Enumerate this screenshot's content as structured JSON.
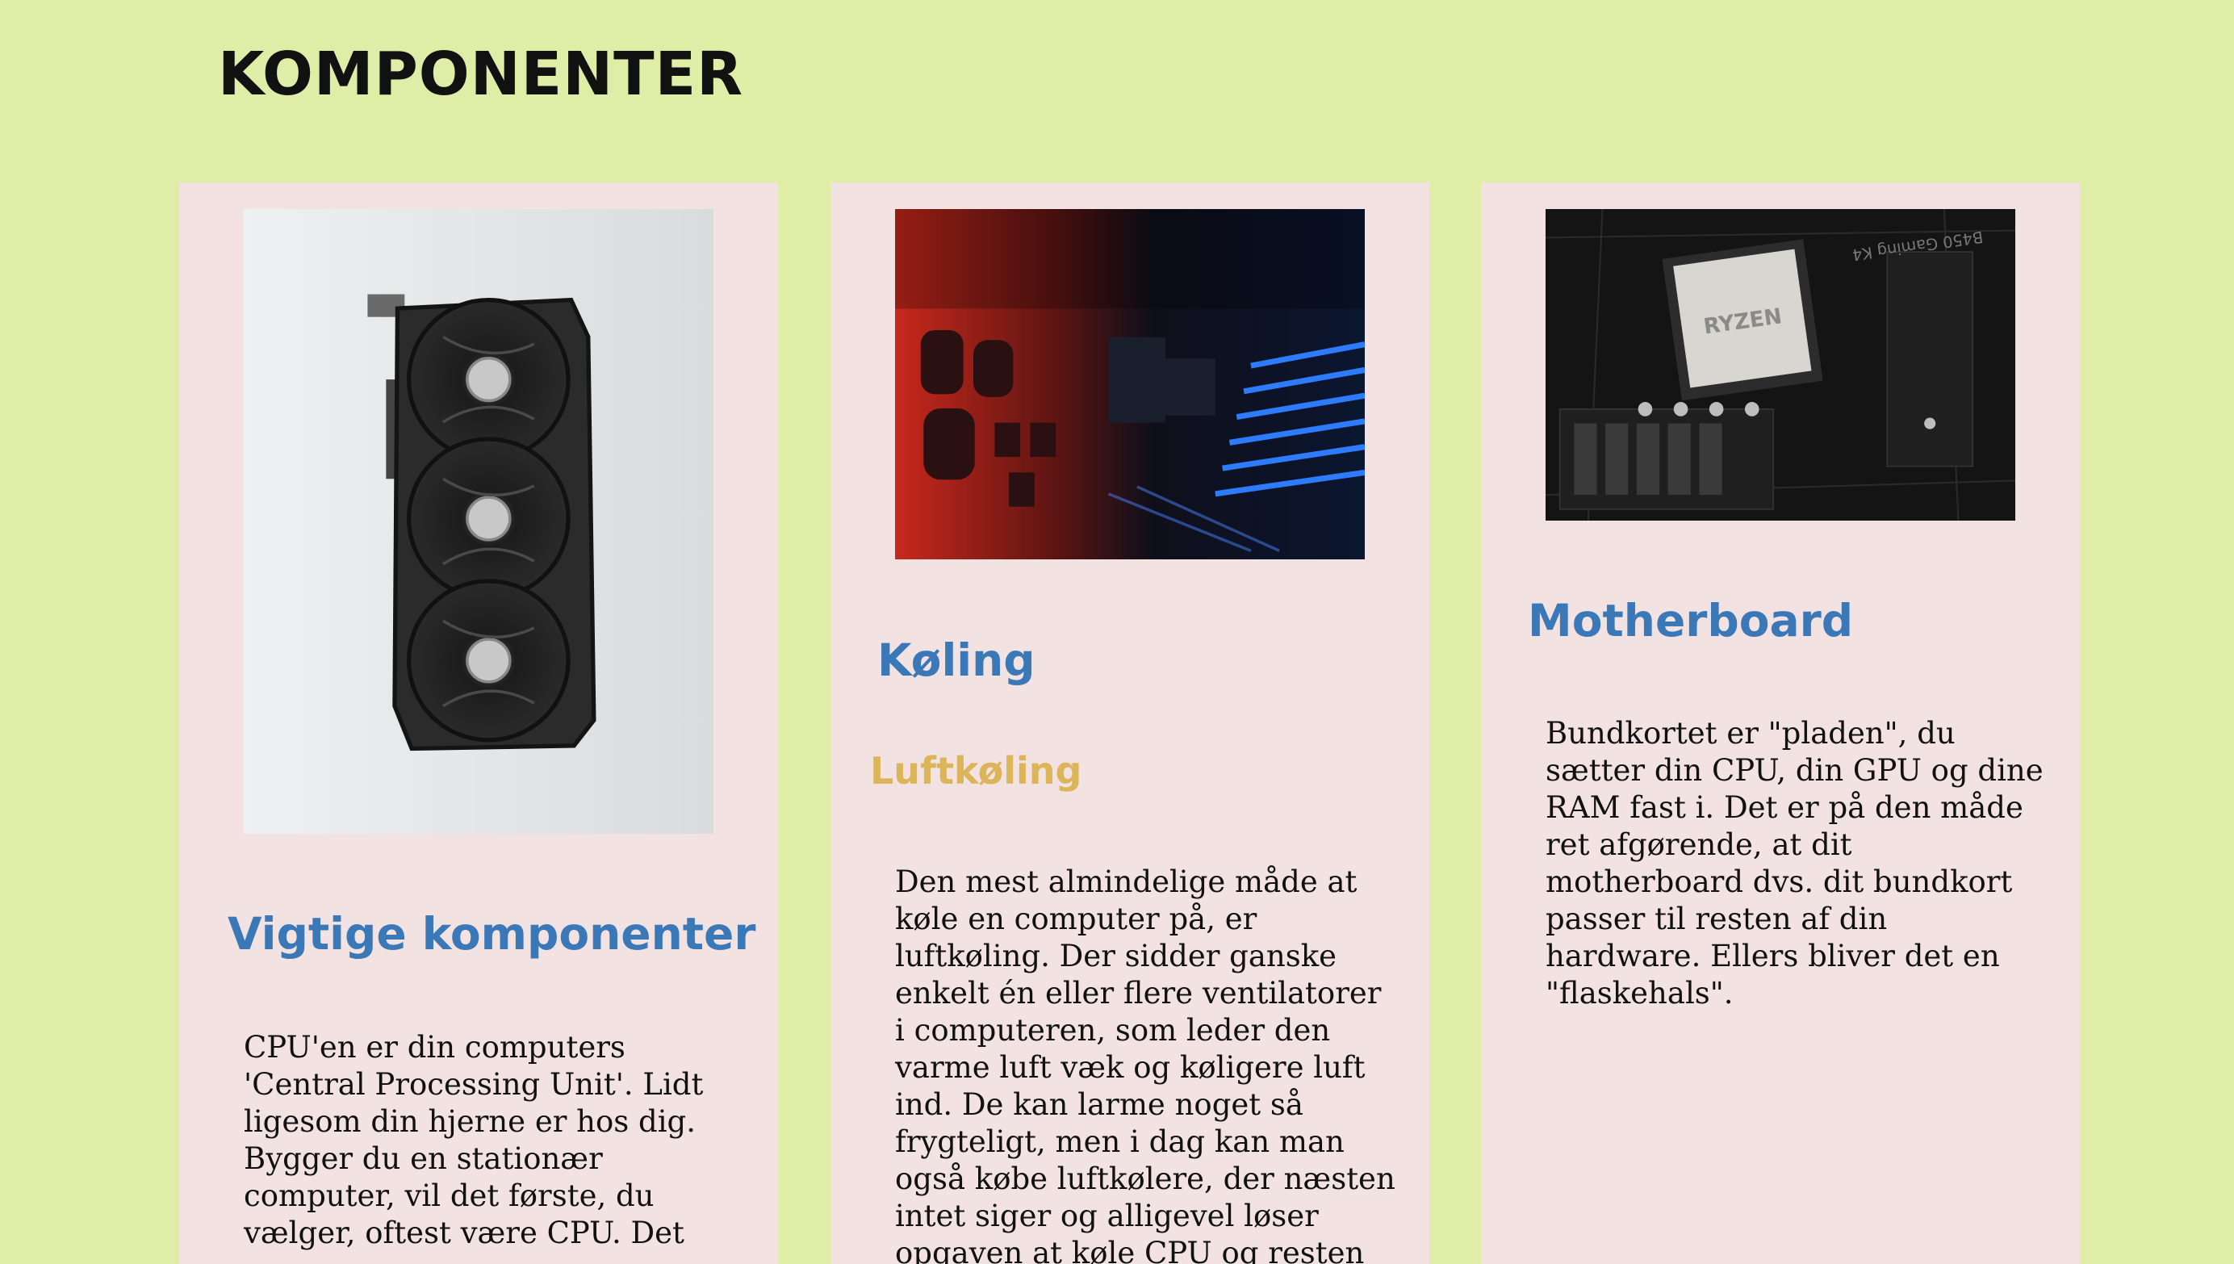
{
  "page": {
    "title": "KOMPONENTER"
  },
  "cards": [
    {
      "image_alt": "Graphics card",
      "heading": "Vigtige komponenter",
      "text": "CPU'en er din computers 'Central Processing Unit'. Lidt ligesom din hjerne er hos dig. Bygger du en stationær computer, vil det første, du vælger, oftest være CPU. Det"
    },
    {
      "image_alt": "Circuit board with red and blue lighting",
      "heading": "Køling",
      "subheading": "Luftkøling",
      "text": "Den mest almindelige måde at køle en computer på, er luftkøling. Der sidder ganske enkelt én eller flere ventilatorer i computeren, som leder den varme luft væk og køligere luft ind. De kan larme noget så frygteligt, men i dag kan man også købe luftkølere, der næsten intet siger og alligevel løser opgaven at køle CPU og resten af"
    },
    {
      "image_alt": "Motherboard with Ryzen CPU",
      "heading": "Motherboard",
      "text": "Bundkortet er \"pladen\", du sætter din CPU, din GPU og dine RAM fast i. Det er på den måde ret afgørende, at dit motherboard dvs. dit bundkort passer til resten af din hardware. Ellers bliver det en \"flaskehals\"."
    }
  ],
  "image_text": {
    "cpu_brand": "RYZEN",
    "board_model": "B450 Gaming K4"
  },
  "colors": {
    "background": "#dfeda6",
    "card": "#f2e3e2",
    "heading": "#3a78b8",
    "subheading": "#dcb45a"
  }
}
